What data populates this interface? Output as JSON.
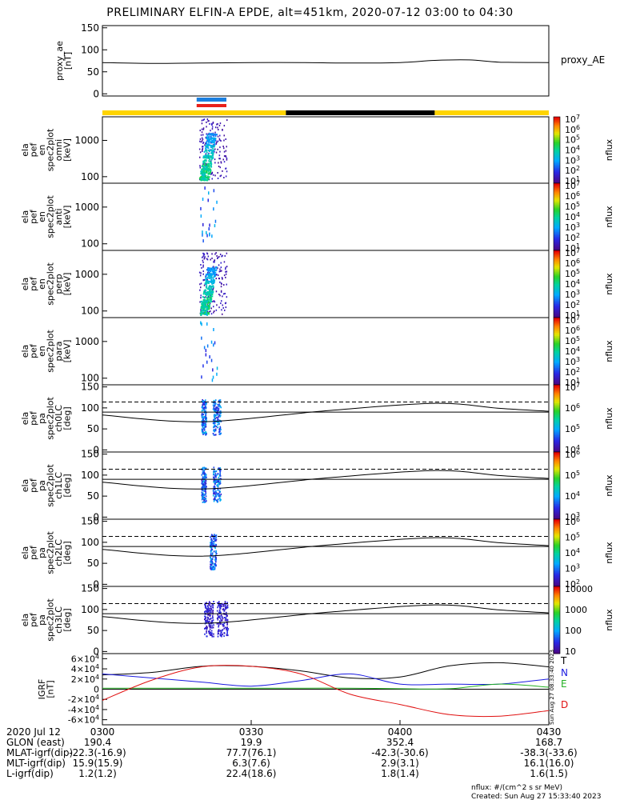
{
  "title": "PRELIMINARY ELFIN-A EPDE, alt=451km, 2020-07-12 03:00 to 04:30",
  "footer": {
    "units": "nflux: #/(cm^2 s sr MeV)",
    "created": "Created: Sun Aug 27 15:33:40 2023",
    "side_stamp": "Sun Aug 27 08:33:40 2023"
  },
  "colors": {
    "day_bar": "#ffd400",
    "night_bar": "#000000",
    "mark_blue": "#1a7fe0",
    "mark_red": "#e8201a",
    "grf_T": "#000000",
    "grf_N": "#1a1ae0",
    "grf_E": "#22b022",
    "grf_D": "#e01010"
  },
  "orbit_table": {
    "date_label": "2020 Jul 12",
    "time_ticks": [
      "0300",
      "0330",
      "0400",
      "0430"
    ],
    "rows": [
      {
        "label": "GLON (east)",
        "values": [
          "190.4",
          "19.9",
          "352.4",
          "168.7"
        ]
      },
      {
        "label": "MLAT-igrf(dip)",
        "values": [
          "-22.3(-16.9)",
          "77.7(76.1)",
          "-42.3(-30.6)",
          "-38.3(-33.6)"
        ]
      },
      {
        "label": "MLT-igrf(dip)",
        "values": [
          "15.9(15.9)",
          "6.3(7.6)",
          "2.9(3.1)",
          "16.1(16.0)"
        ]
      },
      {
        "label": "L-igrf(dip)",
        "values": [
          "1.2(1.2)",
          "22.4(18.6)",
          "1.8(1.4)",
          "1.6(1.5)"
        ]
      }
    ]
  },
  "chart_data": [
    {
      "type": "line",
      "ylabel": "proxy_ae [nT]",
      "legend": "proxy_AE",
      "ylim": [
        -5,
        155
      ],
      "yticks": [
        "0",
        "50",
        "100",
        "150"
      ],
      "x_minutes": [
        0,
        10,
        20,
        30,
        40,
        50,
        60,
        67,
        74,
        80,
        90
      ],
      "values": [
        71,
        69,
        70,
        71,
        71,
        70,
        71,
        76,
        77,
        72,
        71
      ]
    },
    {
      "type": "heatmap",
      "ylabel": "ela pef en spec2plot omni [keV]",
      "yticks": [
        "100",
        "1000"
      ],
      "colorbar_label": "nflux",
      "colorbar_ticks": [
        "10^1",
        "10^2",
        "10^3",
        "10^4",
        "10^5",
        "10^6",
        "10^7"
      ]
    },
    {
      "type": "heatmap",
      "ylabel": "ela pef en spec2plot anti [keV]",
      "yticks": [
        "100",
        "1000"
      ],
      "colorbar_label": "nflux",
      "colorbar_ticks": [
        "10^1",
        "10^2",
        "10^3",
        "10^4",
        "10^5",
        "10^6",
        "10^7"
      ]
    },
    {
      "type": "heatmap",
      "ylabel": "ela pef en spec2plot perp [keV]",
      "yticks": [
        "100",
        "1000"
      ],
      "colorbar_label": "nflux",
      "colorbar_ticks": [
        "10^1",
        "10^2",
        "10^3",
        "10^4",
        "10^5",
        "10^6",
        "10^7"
      ]
    },
    {
      "type": "heatmap",
      "ylabel": "ela pef en spec2plot para [keV]",
      "yticks": [
        "100",
        "1000"
      ],
      "colorbar_label": "nflux",
      "colorbar_ticks": [
        "10^1",
        "10^2",
        "10^3",
        "10^4",
        "10^5",
        "10^6",
        "10^7"
      ]
    },
    {
      "type": "heatmap",
      "ylabel": "ela pef pa spec2plot ch0LC [deg]",
      "yticks": [
        "0",
        "50",
        "100",
        "150"
      ],
      "colorbar_label": "nflux",
      "colorbar_ticks": [
        "10^4",
        "10^5",
        "10^6",
        "10^7"
      ]
    },
    {
      "type": "heatmap",
      "ylabel": "ela pef pa spec2plot ch1LC [deg]",
      "yticks": [
        "0",
        "50",
        "100",
        "150"
      ],
      "colorbar_label": "nflux",
      "colorbar_ticks": [
        "10^3",
        "10^4",
        "10^5",
        "10^6"
      ]
    },
    {
      "type": "heatmap",
      "ylabel": "ela pef pa spec2plot ch2LC [deg]",
      "yticks": [
        "0",
        "50",
        "100",
        "150"
      ],
      "colorbar_label": "nflux",
      "colorbar_ticks": [
        "10^2",
        "10^3",
        "10^4",
        "10^5",
        "10^6"
      ]
    },
    {
      "type": "heatmap",
      "ylabel": "ela pef pa spec2plot ch3LC [deg]",
      "yticks": [
        "0",
        "50",
        "100",
        "150"
      ],
      "colorbar_label": "nflux",
      "colorbar_ticks": [
        "10",
        "100",
        "1000",
        "10000"
      ]
    },
    {
      "type": "line",
      "ylabel": "IGRF [nT]",
      "ylim": [
        -70000,
        70000
      ],
      "yticks": [
        "-6x10^4",
        "-4x10^4",
        "-2x10^4",
        "0",
        "2x10^4",
        "4x10^4",
        "6x10^4"
      ],
      "x_minutes": [
        0,
        10,
        20,
        30,
        40,
        50,
        60,
        70,
        80,
        90
      ],
      "series": [
        {
          "name": "T",
          "values": [
            28000,
            33000,
            45000,
            45000,
            36000,
            22000,
            24000,
            46000,
            52000,
            44000
          ]
        },
        {
          "name": "N",
          "values": [
            30000,
            22000,
            14000,
            6000,
            17000,
            30000,
            10000,
            10000,
            10000,
            20000
          ]
        },
        {
          "name": "E",
          "values": [
            2000,
            2000,
            2000,
            2000,
            2000,
            2000,
            1000,
            1000,
            10000,
            4000
          ]
        },
        {
          "name": "D",
          "values": [
            -22000,
            18000,
            44000,
            45000,
            30000,
            -10000,
            -30000,
            -50000,
            -53000,
            -42000
          ]
        }
      ]
    }
  ]
}
